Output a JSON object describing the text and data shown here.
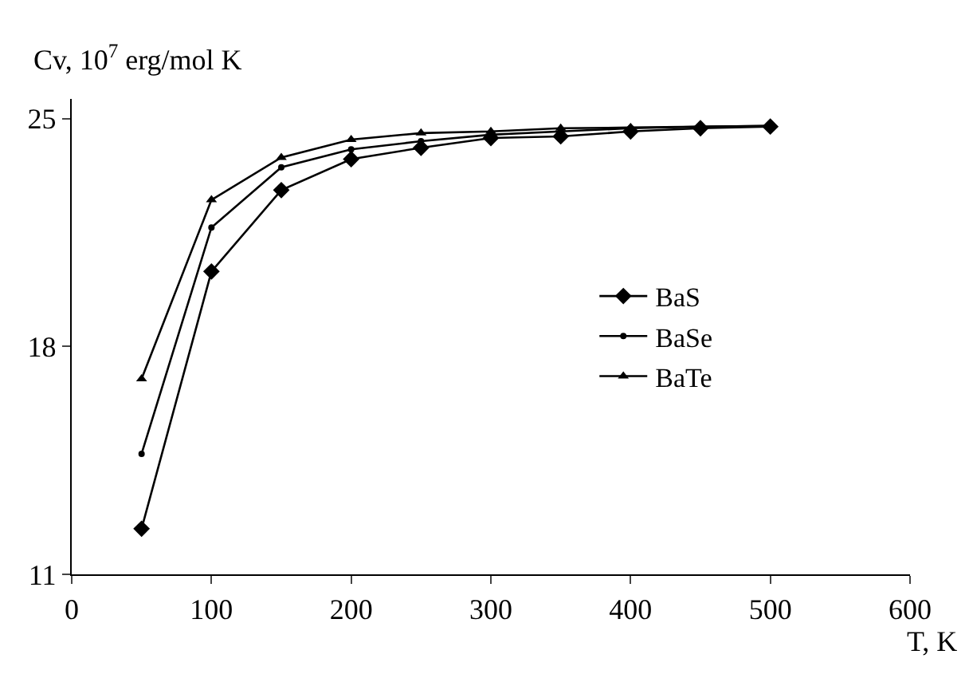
{
  "chart_data": {
    "type": "line",
    "xlabel": "T, K",
    "ylabel": "Cv, 10$^{7}$ erg/mol K",
    "x": [
      50,
      100,
      150,
      200,
      250,
      300,
      350,
      400,
      450,
      500
    ],
    "series": [
      {
        "name": "BaS",
        "color": "#000000",
        "marker": "diamond",
        "values": [
          12.4,
          20.3,
          22.8,
          23.75,
          24.1,
          24.4,
          24.45,
          24.6,
          24.7,
          24.75
        ]
      },
      {
        "name": "BaSe",
        "color": "#000000",
        "marker": "circle",
        "values": [
          14.7,
          21.65,
          23.5,
          24.05,
          24.3,
          24.5,
          24.6,
          24.7,
          24.75,
          24.77
        ]
      },
      {
        "name": "BaTe",
        "color": "#000000",
        "marker": "triangle",
        "values": [
          17.0,
          22.5,
          23.8,
          24.35,
          24.55,
          24.6,
          24.7,
          24.72,
          24.75,
          24.77
        ]
      }
    ],
    "xlim": [
      0,
      600
    ],
    "xticks": [
      0,
      100,
      200,
      300,
      400,
      500,
      600
    ],
    "ylim": [
      11,
      25.6
    ],
    "yticks": [
      11,
      18,
      25
    ],
    "grid": false,
    "legend": "right",
    "line_style": "solid"
  }
}
